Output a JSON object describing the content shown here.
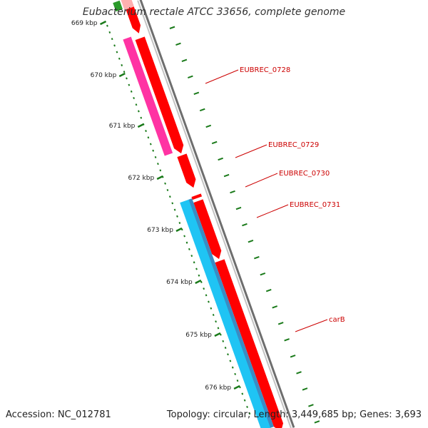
{
  "title": "Eubacterium rectale ATCC 33656, complete genome",
  "footer": {
    "accession": "Accession: NC_012781",
    "summary": "Topology: circular; Length: 3,449,685 bp; Genes: 3,693"
  },
  "colors": {
    "forward_cds": "#ff0000",
    "forward_highlight": "#ff33a3",
    "reverse_cds": "#1fc4f4",
    "reverse_edge": "#3a8cc4",
    "backbone": "#888888",
    "ticks": "#1a7a1a",
    "labels": "#cc0000"
  },
  "ticks": [
    {
      "kbp": 669,
      "label": "669 kbp"
    },
    {
      "kbp": 670,
      "label": "670 kbp"
    },
    {
      "kbp": 671,
      "label": "671 kbp"
    },
    {
      "kbp": 672,
      "label": "672 kbp"
    },
    {
      "kbp": 673,
      "label": "673 kbp"
    },
    {
      "kbp": 674,
      "label": "674 kbp"
    },
    {
      "kbp": 675,
      "label": "675 kbp"
    },
    {
      "kbp": 676,
      "label": "676 kbp"
    }
  ],
  "genes": [
    {
      "name": "EUBREC_0728"
    },
    {
      "name": "EUBREC_0729"
    },
    {
      "name": "EUBREC_0730"
    },
    {
      "name": "EUBREC_0731"
    },
    {
      "name": "carB"
    }
  ]
}
